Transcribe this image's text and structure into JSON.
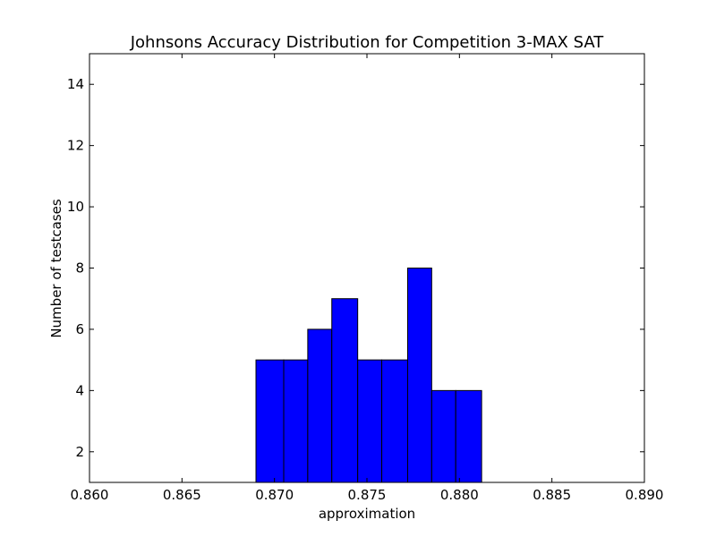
{
  "chart_data": {
    "type": "bar",
    "title": "Johnsons Accuracy Distribution for Competition 3-MAX SAT",
    "xlabel": "approximation",
    "ylabel": "Number of testcases",
    "xlim": [
      0.86,
      0.89
    ],
    "ylim": [
      1,
      15
    ],
    "xticks": [
      "0.860",
      "0.865",
      "0.870",
      "0.875",
      "0.880",
      "0.885",
      "0.890"
    ],
    "yticks": [
      "2",
      "4",
      "6",
      "8",
      "10",
      "12",
      "14"
    ],
    "bin_edges": [
      0.869,
      0.8705,
      0.8718,
      0.8731,
      0.8745,
      0.8758,
      0.8772,
      0.8785,
      0.8798,
      0.8812,
      0.8825
    ],
    "values": [
      5,
      5,
      6,
      7,
      5,
      5,
      8,
      4,
      4,
      0
    ],
    "bar_color": "#0000ff",
    "grid": false
  }
}
